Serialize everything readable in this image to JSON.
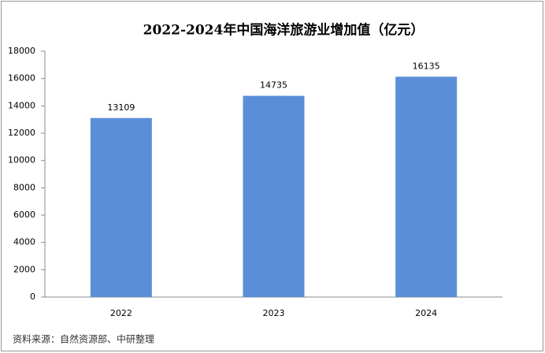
{
  "chart_data": {
    "type": "bar",
    "title": "2022-2024年中国海洋旅游业增加值（亿元）",
    "categories": [
      "2022",
      "2023",
      "2024"
    ],
    "values": [
      13109,
      14735,
      16135
    ],
    "color": "#5a8fd8",
    "ylim": [
      0,
      18000
    ],
    "yticks": [
      0,
      2000,
      4000,
      6000,
      8000,
      10000,
      12000,
      14000,
      16000,
      18000
    ],
    "grid": false,
    "source": "资料来源：自然资源部、中研整理"
  }
}
